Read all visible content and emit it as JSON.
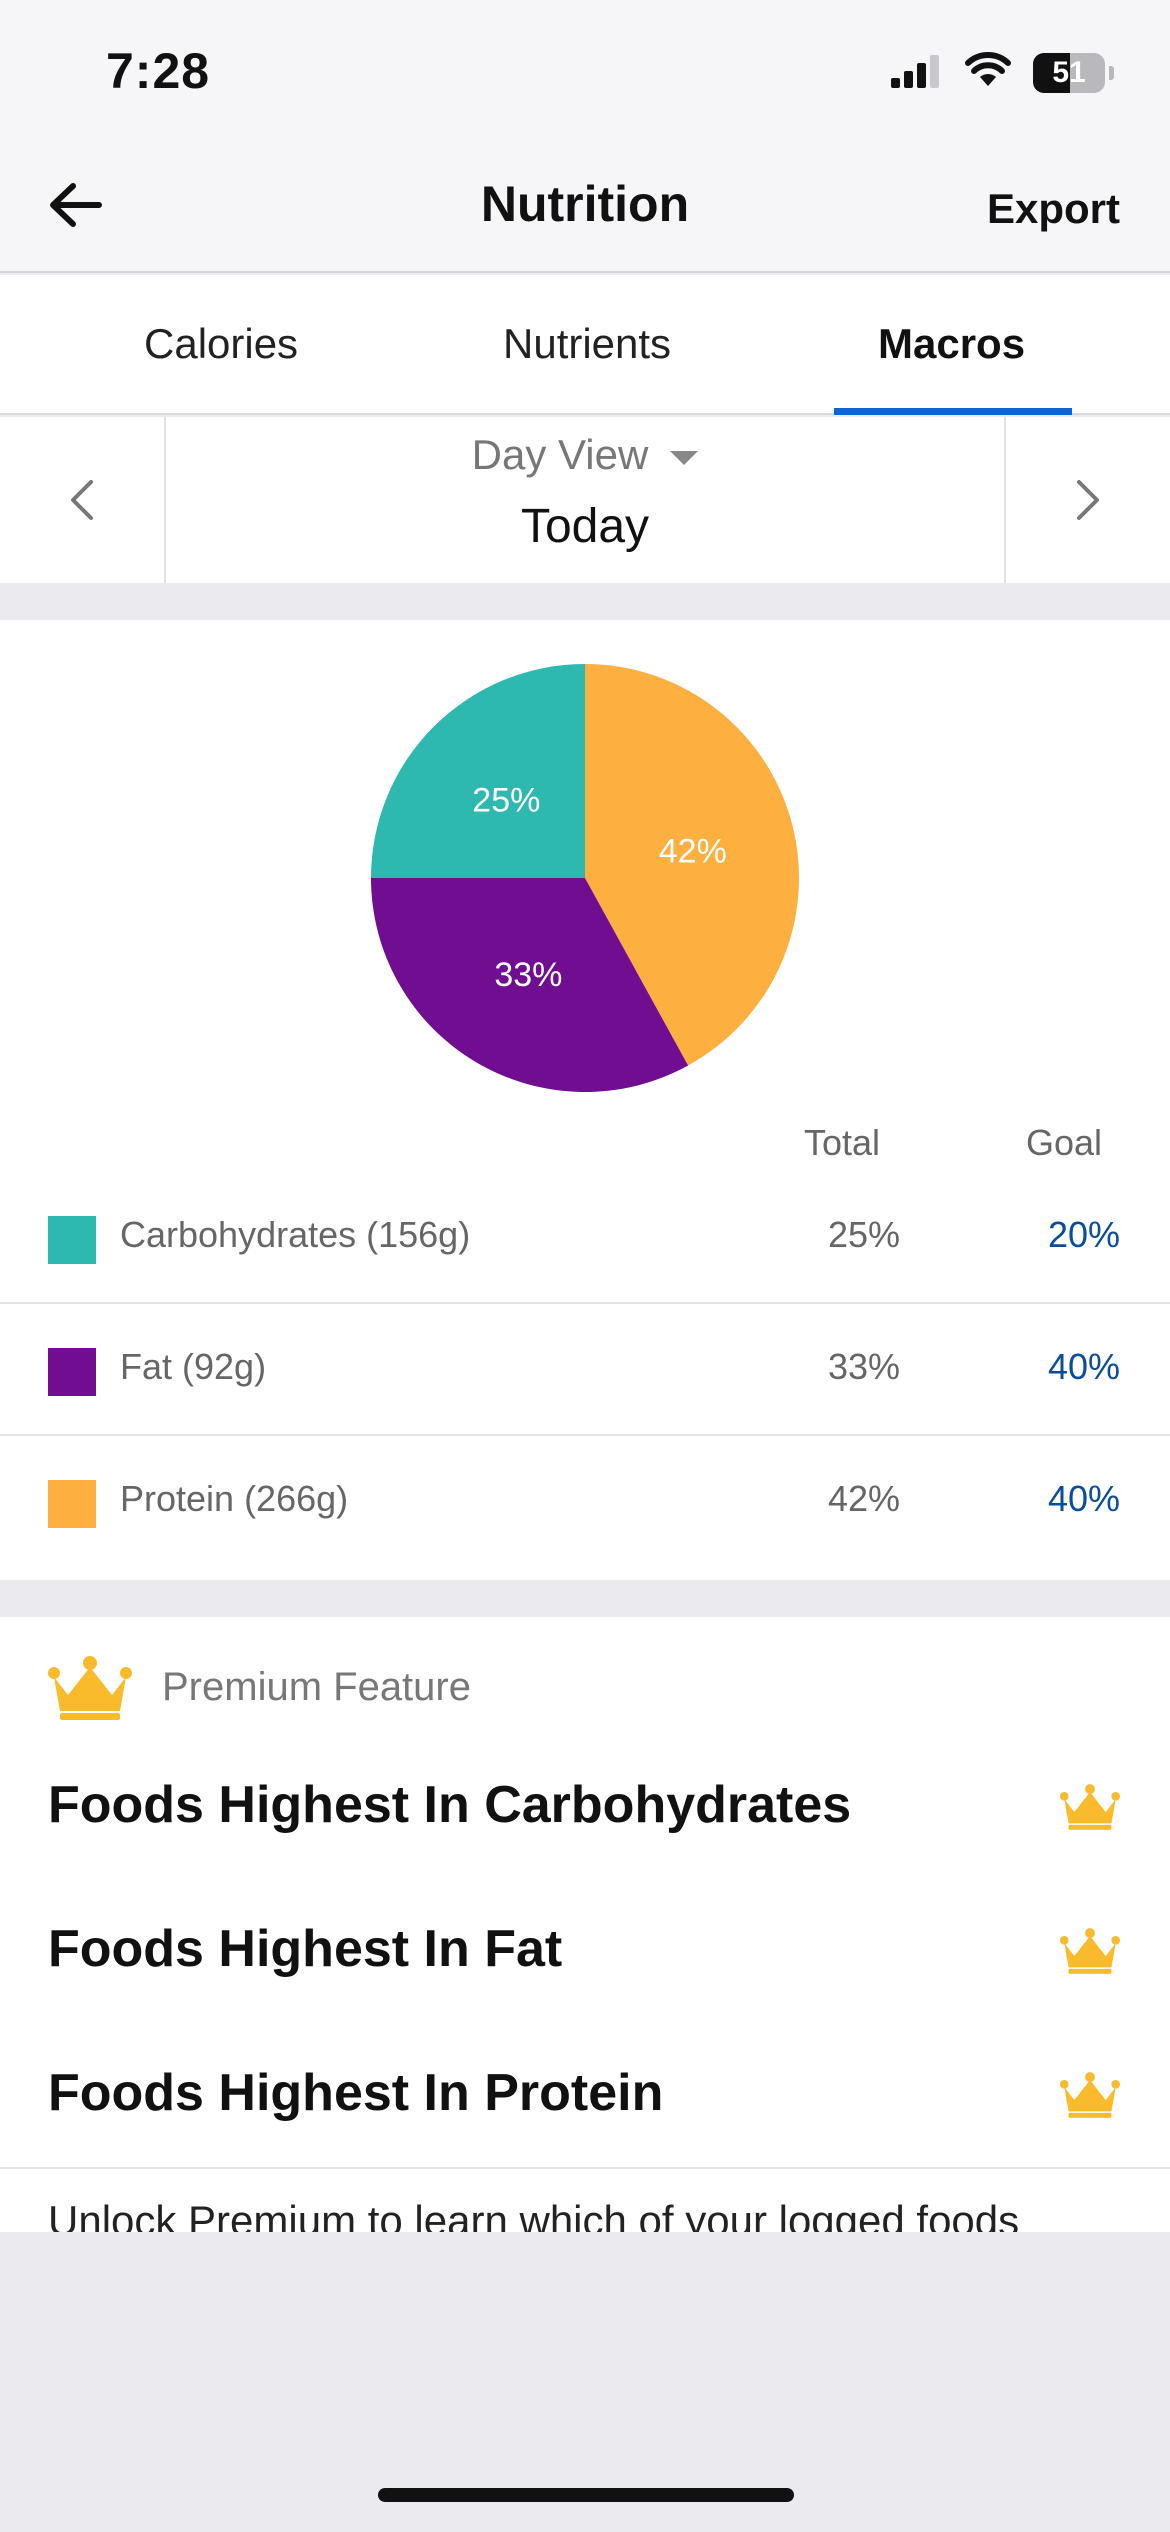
{
  "status_bar": {
    "time": "7:28",
    "battery_level": "51",
    "icons": [
      "cellular-signal-icon",
      "wifi-icon",
      "battery-icon"
    ]
  },
  "nav": {
    "back_icon": "arrow-left-icon",
    "title": "Nutrition",
    "export_label": "Export"
  },
  "tabs": [
    {
      "label": "Calories",
      "active": false
    },
    {
      "label": "Nutrients",
      "active": false
    },
    {
      "label": "Macros",
      "active": true
    }
  ],
  "date_nav": {
    "view_mode": "Day View",
    "date_label": "Today",
    "prev_icon": "chevron-left-icon",
    "next_icon": "chevron-right-icon"
  },
  "chart_data": {
    "type": "pie",
    "categories": [
      "Protein",
      "Fat",
      "Carbohydrates"
    ],
    "values": [
      42,
      33,
      25
    ],
    "labels": [
      "42%",
      "33%",
      "25%"
    ],
    "colors": [
      "#fdb03f",
      "#710d90",
      "#2db8b0"
    ]
  },
  "macros": {
    "header_total": "Total",
    "header_goal": "Goal",
    "rows": [
      {
        "label": "Carbohydrates (156g)",
        "total": "25%",
        "goal": "20%",
        "color": "#2db8b0"
      },
      {
        "label": "Fat (92g)",
        "total": "33%",
        "goal": "40%",
        "color": "#710d90"
      },
      {
        "label": "Protein (266g)",
        "total": "42%",
        "goal": "40%",
        "color": "#fdb03f"
      }
    ]
  },
  "premium": {
    "badge_label": "Premium Feature",
    "crown_icon": "crown-icon",
    "crown_color": "#f9bb2c",
    "items": [
      "Foods Highest In Carbohydrates",
      "Foods Highest In Fat",
      "Foods Highest In Protein"
    ],
    "unlock_text": "Unlock Premium to learn which of your logged foods"
  },
  "colors": {
    "accent_tab": "#0a66d8",
    "goal_text": "#0b4d9c"
  }
}
